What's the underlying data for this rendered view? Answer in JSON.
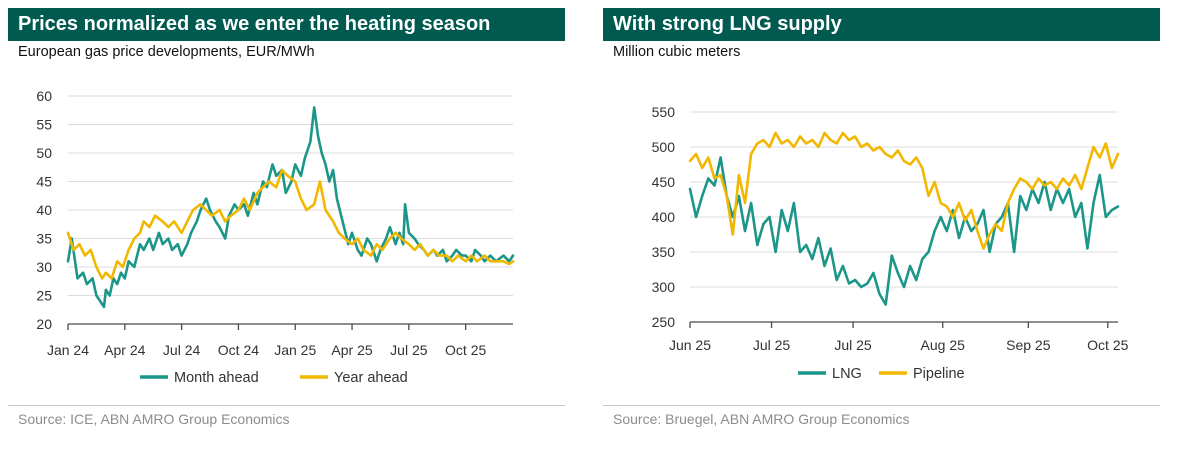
{
  "colors": {
    "banner": "#005a50",
    "teal": "#1b9688",
    "gold": "#f2b700",
    "grid": "#dcdcdc",
    "axis": "#4a4a4a"
  },
  "left": {
    "heading": "Prices normalized as we enter the heating season",
    "subtitle": "European gas price developments, EUR/MWh",
    "source": "Source: ICE, ABN AMRO Group Economics"
  },
  "right": {
    "heading": "With strong LNG supply",
    "subtitle": "Million cubic meters",
    "source": "Source: Bruegel, ABN AMRO Group Economics"
  },
  "chart_data": [
    {
      "type": "line",
      "title": "European gas price developments, EUR/MWh",
      "x_unit": "months since Jan 2024",
      "xlim": [
        0,
        23.5
      ],
      "ylim": [
        20,
        60
      ],
      "yticks": [
        20,
        25,
        30,
        35,
        40,
        45,
        50,
        55,
        60
      ],
      "xticks": [
        {
          "x": 0,
          "label": "Jan 24"
        },
        {
          "x": 3,
          "label": "Apr 24"
        },
        {
          "x": 6,
          "label": "Jul 24"
        },
        {
          "x": 9,
          "label": "Oct 24"
        },
        {
          "x": 12,
          "label": "Jan 25"
        },
        {
          "x": 15,
          "label": "Apr 25"
        },
        {
          "x": 18,
          "label": "Jul 25"
        },
        {
          "x": 21,
          "label": "Oct 25"
        }
      ],
      "grid": true,
      "legend_position": "bottom",
      "series": [
        {
          "name": "Month ahead",
          "color": "#1b9688",
          "x": [
            0,
            0.2,
            0.5,
            0.8,
            1.0,
            1.3,
            1.5,
            1.7,
            1.9,
            2.0,
            2.2,
            2.4,
            2.6,
            2.8,
            3.0,
            3.2,
            3.5,
            3.8,
            4.0,
            4.3,
            4.5,
            4.8,
            5.0,
            5.3,
            5.5,
            5.8,
            6.0,
            6.3,
            6.5,
            6.8,
            7.0,
            7.3,
            7.5,
            7.8,
            8.0,
            8.3,
            8.5,
            8.8,
            9.0,
            9.3,
            9.5,
            9.8,
            10.0,
            10.3,
            10.5,
            10.8,
            11.0,
            11.3,
            11.5,
            11.8,
            12.0,
            12.3,
            12.5,
            12.8,
            13.0,
            13.2,
            13.4,
            13.6,
            13.8,
            14.0,
            14.2,
            14.5,
            14.8,
            15.0,
            15.3,
            15.5,
            15.8,
            16.0,
            16.3,
            16.5,
            16.8,
            17.0,
            17.3,
            17.5,
            17.7,
            17.8,
            18.0,
            18.3,
            18.5,
            18.8,
            19.0,
            19.3,
            19.5,
            19.8,
            20.0,
            20.3,
            20.5,
            20.8,
            21.0,
            21.3,
            21.5,
            21.8,
            22.0,
            22.3,
            22.6,
            23.0,
            23.3,
            23.5
          ],
          "values": [
            31,
            35,
            28,
            29,
            27,
            28,
            25,
            24,
            23,
            26,
            25,
            28,
            27,
            29,
            28,
            31,
            30,
            34,
            33,
            35,
            33,
            36,
            34,
            35,
            33,
            34,
            32,
            34,
            36,
            38,
            40,
            42,
            40,
            38,
            37,
            35,
            39,
            41,
            40,
            41,
            39,
            43,
            41,
            45,
            44,
            48,
            46,
            47,
            43,
            45,
            48,
            46,
            49,
            52,
            58,
            53,
            50,
            48,
            45,
            47,
            42,
            38,
            34,
            36,
            33,
            32,
            35,
            34,
            31,
            33,
            35,
            37,
            34,
            36,
            34,
            41,
            36,
            35,
            34,
            33,
            32,
            33,
            32,
            33,
            31,
            32,
            33,
            32,
            32,
            31,
            33,
            32,
            31,
            32,
            31,
            32,
            31,
            32
          ]
        },
        {
          "name": "Year ahead",
          "color": "#f2b700",
          "x": [
            0,
            0.3,
            0.6,
            0.9,
            1.2,
            1.5,
            1.8,
            2.0,
            2.3,
            2.6,
            2.9,
            3.2,
            3.5,
            3.8,
            4.0,
            4.3,
            4.6,
            5.0,
            5.3,
            5.6,
            6.0,
            6.3,
            6.6,
            7.0,
            7.3,
            7.6,
            8.0,
            8.3,
            8.6,
            9.0,
            9.3,
            9.6,
            10.0,
            10.3,
            10.6,
            11.0,
            11.3,
            11.6,
            12.0,
            12.3,
            12.6,
            13.0,
            13.3,
            13.6,
            14.0,
            14.3,
            14.6,
            15.0,
            15.3,
            15.6,
            16.0,
            16.3,
            16.6,
            17.0,
            17.3,
            17.6,
            18.0,
            18.3,
            18.6,
            19.0,
            19.3,
            19.6,
            20.0,
            20.3,
            20.6,
            21.0,
            21.3,
            21.6,
            22.0,
            22.3,
            22.6,
            23.0,
            23.3,
            23.5
          ],
          "values": [
            36,
            33,
            34,
            32,
            33,
            30,
            28,
            29,
            28,
            31,
            30,
            33,
            35,
            36,
            38,
            37,
            39,
            38,
            37,
            38,
            36,
            38,
            40,
            41,
            40,
            39,
            40,
            38,
            39,
            40,
            42,
            40,
            43,
            44,
            45,
            44,
            47,
            46,
            45,
            42,
            40,
            41,
            45,
            40,
            38,
            36,
            35,
            34,
            35,
            33,
            32,
            34,
            33,
            35,
            36,
            35,
            34,
            33,
            34,
            32,
            33,
            32,
            32,
            31,
            32,
            31,
            32,
            31,
            32,
            31,
            31,
            31,
            30.5,
            31
          ]
        }
      ]
    },
    {
      "type": "line",
      "title": "Million cubic meters",
      "x_unit": "weeks since start of Jun 2025",
      "xlim": [
        0,
        21
      ],
      "ylim": [
        250,
        550
      ],
      "yticks": [
        250,
        300,
        350,
        400,
        450,
        500,
        550
      ],
      "xticks": [
        {
          "x": 0,
          "label": "Jun 25"
        },
        {
          "x": 4,
          "label": "Jul 25"
        },
        {
          "x": 8,
          "label": "Jul 25"
        },
        {
          "x": 12.4,
          "label": "Aug 25"
        },
        {
          "x": 16.6,
          "label": "Sep 25"
        },
        {
          "x": 20.5,
          "label": "Oct 25"
        }
      ],
      "grid": true,
      "legend_position": "bottom",
      "series": [
        {
          "name": "LNG",
          "color": "#1b9688",
          "x": [
            0,
            0.3,
            0.6,
            0.9,
            1.2,
            1.5,
            1.8,
            2.1,
            2.4,
            2.7,
            3.0,
            3.3,
            3.6,
            3.9,
            4.2,
            4.5,
            4.8,
            5.1,
            5.4,
            5.7,
            6.0,
            6.3,
            6.6,
            6.9,
            7.2,
            7.5,
            7.8,
            8.1,
            8.4,
            8.7,
            9.0,
            9.3,
            9.6,
            9.9,
            10.2,
            10.5,
            10.8,
            11.1,
            11.4,
            11.7,
            12.0,
            12.3,
            12.6,
            12.9,
            13.2,
            13.5,
            13.8,
            14.1,
            14.4,
            14.7,
            15.0,
            15.3,
            15.6,
            15.9,
            16.2,
            16.5,
            16.8,
            17.1,
            17.4,
            17.7,
            18.0,
            18.3,
            18.6,
            18.9,
            19.2,
            19.5,
            19.8,
            20.1,
            20.4,
            20.7,
            21.0
          ],
          "values": [
            440,
            400,
            430,
            455,
            445,
            485,
            430,
            400,
            430,
            380,
            420,
            360,
            390,
            400,
            350,
            410,
            380,
            420,
            350,
            360,
            340,
            370,
            330,
            355,
            310,
            330,
            305,
            310,
            300,
            305,
            320,
            290,
            275,
            345,
            320,
            300,
            330,
            310,
            340,
            350,
            380,
            400,
            380,
            410,
            370,
            400,
            380,
            390,
            410,
            350,
            390,
            400,
            420,
            350,
            430,
            410,
            440,
            420,
            450,
            410,
            440,
            420,
            440,
            400,
            420,
            355,
            420,
            460,
            400,
            410,
            415
          ]
        },
        {
          "name": "Pipeline",
          "color": "#f2b700",
          "x": [
            0,
            0.3,
            0.6,
            0.9,
            1.2,
            1.5,
            1.8,
            2.1,
            2.4,
            2.7,
            3.0,
            3.3,
            3.6,
            3.9,
            4.2,
            4.5,
            4.8,
            5.1,
            5.4,
            5.7,
            6.0,
            6.3,
            6.6,
            6.9,
            7.2,
            7.5,
            7.8,
            8.1,
            8.4,
            8.7,
            9.0,
            9.3,
            9.6,
            9.9,
            10.2,
            10.5,
            10.8,
            11.1,
            11.4,
            11.7,
            12.0,
            12.3,
            12.6,
            12.9,
            13.2,
            13.5,
            13.8,
            14.1,
            14.4,
            14.7,
            15.0,
            15.3,
            15.6,
            15.9,
            16.2,
            16.5,
            16.8,
            17.1,
            17.4,
            17.7,
            18.0,
            18.3,
            18.6,
            18.9,
            19.2,
            19.5,
            19.8,
            20.1,
            20.4,
            20.7,
            21.0
          ],
          "values": [
            480,
            490,
            470,
            485,
            455,
            460,
            430,
            375,
            460,
            420,
            490,
            505,
            510,
            500,
            520,
            505,
            510,
            500,
            515,
            505,
            510,
            500,
            520,
            510,
            505,
            520,
            510,
            515,
            500,
            505,
            495,
            500,
            490,
            485,
            495,
            480,
            475,
            485,
            470,
            430,
            450,
            420,
            415,
            400,
            420,
            395,
            410,
            380,
            355,
            375,
            390,
            380,
            420,
            440,
            455,
            450,
            440,
            455,
            445,
            450,
            440,
            455,
            445,
            460,
            440,
            470,
            500,
            485,
            505,
            470,
            490
          ]
        }
      ]
    }
  ]
}
